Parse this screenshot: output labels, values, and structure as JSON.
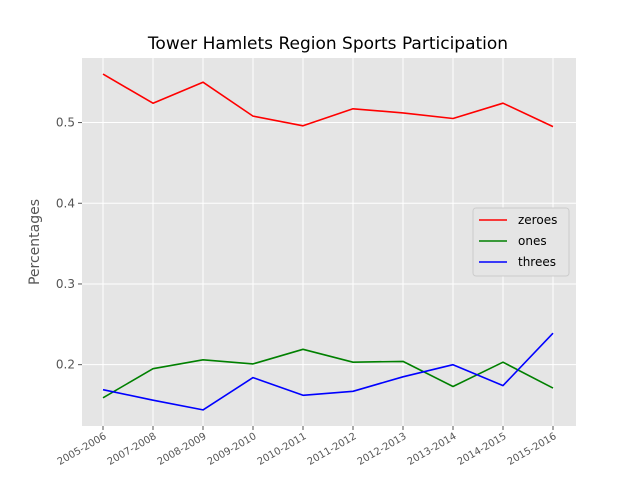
{
  "chart_data": {
    "type": "line",
    "title": "Tower Hamlets Region Sports Participation",
    "xlabel": "",
    "ylabel": "Percentages",
    "categories": [
      "2005-2006",
      "2007-2008",
      "2008-2009",
      "2009-2010",
      "2010-2011",
      "2011-2012",
      "2012-2013",
      "2013-2014",
      "2014-2015",
      "2015-2016"
    ],
    "series": [
      {
        "name": "zeroes",
        "color": "#ff0000",
        "values": [
          0.56,
          0.524,
          0.55,
          0.508,
          0.496,
          0.517,
          0.512,
          0.505,
          0.524,
          0.495
        ]
      },
      {
        "name": "ones",
        "color": "#008000",
        "values": [
          0.159,
          0.195,
          0.206,
          0.201,
          0.219,
          0.203,
          0.204,
          0.173,
          0.203,
          0.171
        ]
      },
      {
        "name": "threes",
        "color": "#0000ff",
        "values": [
          0.169,
          0.156,
          0.144,
          0.184,
          0.162,
          0.167,
          0.185,
          0.2,
          0.174,
          0.239
        ]
      }
    ],
    "ylim": [
      0.124,
      0.58
    ],
    "yticks": [
      0.2,
      0.3,
      0.4,
      0.5
    ],
    "ytick_labels": [
      "0.2",
      "0.3",
      "0.4",
      "0.5"
    ],
    "grid": true,
    "legend_position": "right",
    "background": "#e5e5e5"
  }
}
